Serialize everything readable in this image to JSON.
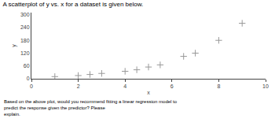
{
  "chart_data": {
    "type": "scatter",
    "title": "A scatterplot of y vs. x for a dataset is given below.",
    "x": [
      1,
      2,
      2.5,
      3,
      4,
      4.5,
      5,
      5.5,
      6.5,
      7,
      8,
      9
    ],
    "values": [
      10,
      15,
      20,
      25,
      35,
      42,
      55,
      65,
      105,
      120,
      180,
      260
    ],
    "xlabel": "x",
    "ylabel": "y",
    "xlim": [
      0,
      10
    ],
    "ylim": [
      0,
      310
    ],
    "xticks": [
      0,
      2,
      4,
      6,
      8,
      10
    ],
    "yticks": [
      0,
      60,
      120,
      180,
      240,
      300
    ],
    "color": "#999999",
    "marker": "+",
    "grid": false,
    "annotations": [
      "Based on the above plot, would you recommend fitting a linear regression model to predict the response given the predictor? Please",
      "explain."
    ]
  }
}
